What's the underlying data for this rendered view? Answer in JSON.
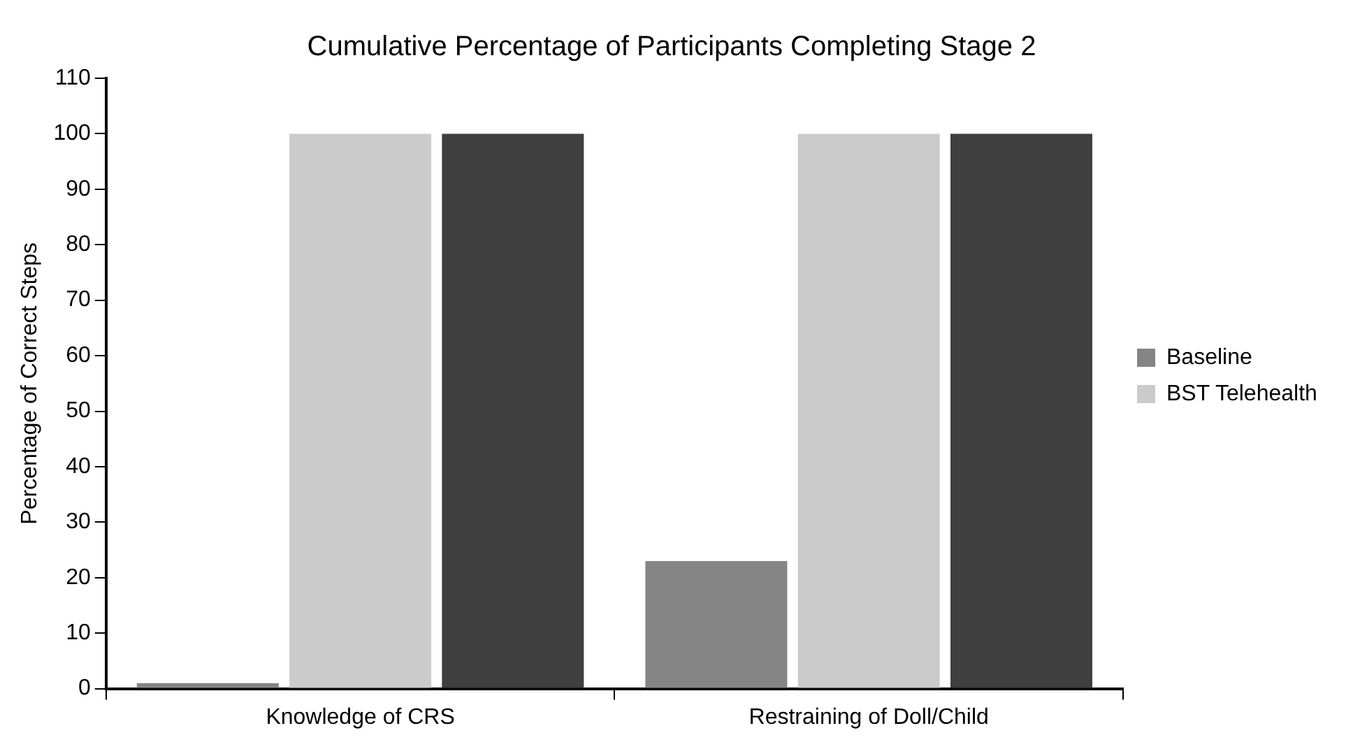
{
  "chart_data": {
    "type": "bar",
    "title": "Cumulative Percentage of Participants Completing Stage 2",
    "ylabel": "Percentage of Correct Steps",
    "categories": [
      "Knowledge of CRS",
      "Restraining of Doll/Child"
    ],
    "series": [
      {
        "name": "Baseline",
        "color": "#858585",
        "values": [
          1,
          23
        ]
      },
      {
        "name": "BST Telehealth",
        "color": "#cbcbcb",
        "values": [
          100,
          100
        ]
      },
      {
        "color": "#3f3f3f",
        "values": [
          100,
          100
        ]
      }
    ],
    "ylim": [
      0,
      110
    ],
    "yticks": [
      0,
      10,
      20,
      30,
      40,
      50,
      60,
      70,
      80,
      90,
      100,
      110
    ],
    "grid": false,
    "legend": "right"
  }
}
